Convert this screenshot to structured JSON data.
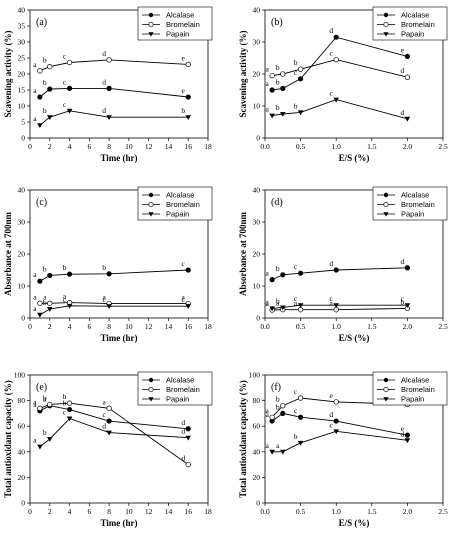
{
  "legend_names": [
    "Alcalase",
    "Bromelain",
    "Papain"
  ],
  "chart_data": [
    {
      "id": "a",
      "panel_label": "(a)",
      "type": "line",
      "xlabel": "Time (hr)",
      "ylabel": "Scavening activity (%)",
      "xlim": [
        0,
        18
      ],
      "ylim": [
        0,
        40
      ],
      "xticks": [
        0,
        2,
        4,
        6,
        8,
        10,
        12,
        14,
        16,
        18
      ],
      "yticks": [
        0,
        5,
        10,
        15,
        20,
        25,
        30,
        35,
        40
      ],
      "legend": "top-right",
      "series": [
        {
          "name": "Alcalase",
          "marker": "circle-filled",
          "x": [
            1,
            2,
            4,
            8,
            16
          ],
          "y": [
            12.8,
            15.3,
            15.5,
            15.5,
            12.8
          ],
          "labels": [
            "a",
            "b",
            "c",
            "d",
            "e"
          ]
        },
        {
          "name": "Bromelain",
          "marker": "circle-open",
          "x": [
            1,
            2,
            4,
            8,
            16
          ],
          "y": [
            21,
            22.3,
            23.6,
            24.4,
            23
          ],
          "labels": [
            "a",
            "b",
            "c",
            "d",
            "e"
          ]
        },
        {
          "name": "Papain",
          "marker": "triangle-down",
          "x": [
            1,
            2,
            4,
            8,
            16
          ],
          "y": [
            4,
            6.5,
            8.5,
            6.5,
            6.5
          ],
          "labels": [
            "a",
            "b",
            "c",
            "d",
            "b"
          ]
        }
      ]
    },
    {
      "id": "b",
      "panel_label": "(b)",
      "type": "line",
      "xlabel": "E/S (%)",
      "ylabel": "Scavening activity (%)",
      "xlim": [
        0,
        2.5
      ],
      "ylim": [
        0,
        40
      ],
      "xticks": [
        0.0,
        0.5,
        1.0,
        1.5,
        2.0,
        2.5
      ],
      "yticks": [
        0,
        10,
        20,
        30,
        40
      ],
      "legend": "top-right",
      "series": [
        {
          "name": "Alcalase",
          "marker": "circle-filled",
          "x": [
            0.1,
            0.25,
            0.5,
            1.0,
            2.0
          ],
          "y": [
            15,
            15.5,
            18.5,
            31.5,
            25.5
          ],
          "labels": [
            "a",
            "b",
            "c",
            "d",
            "e"
          ]
        },
        {
          "name": "Bromelain",
          "marker": "circle-open",
          "x": [
            0.1,
            0.25,
            0.5,
            1.0,
            2.0
          ],
          "y": [
            19.5,
            20,
            21.5,
            24.5,
            19
          ],
          "labels": [
            "a",
            "b",
            "b",
            "c",
            "d"
          ]
        },
        {
          "name": "Papain",
          "marker": "triangle-down",
          "x": [
            0.1,
            0.25,
            0.5,
            1.0,
            2.0
          ],
          "y": [
            7,
            7.5,
            8,
            12,
            6
          ],
          "labels": [
            "a",
            "b",
            "b",
            "c",
            "d"
          ]
        }
      ]
    },
    {
      "id": "c",
      "panel_label": "(c)",
      "type": "line",
      "xlabel": "Time (hr)",
      "ylabel": "Absorbance at 700nm",
      "xlim": [
        0,
        18
      ],
      "ylim": [
        0,
        40
      ],
      "xticks": [
        0,
        2,
        4,
        6,
        8,
        10,
        12,
        14,
        16,
        18
      ],
      "yticks": [
        0,
        10,
        20,
        30,
        40
      ],
      "legend": "top-right",
      "series": [
        {
          "name": "Alcalase",
          "marker": "circle-filled",
          "x": [
            1,
            2,
            4,
            8,
            16
          ],
          "y": [
            11.5,
            13.3,
            13.7,
            13.8,
            15
          ],
          "labels": [
            "a",
            "b",
            "b",
            "b",
            "c"
          ]
        },
        {
          "name": "Bromelain",
          "marker": "circle-open",
          "x": [
            1,
            2,
            4,
            8,
            16
          ],
          "y": [
            4.6,
            4.6,
            4.8,
            4.5,
            4.5
          ],
          "labels": [
            "a",
            "a",
            "a",
            "a",
            "a"
          ]
        },
        {
          "name": "Papain",
          "marker": "triangle-down",
          "x": [
            1,
            2,
            4,
            8,
            16
          ],
          "y": [
            1,
            2.8,
            3.8,
            3.7,
            3.7
          ],
          "labels": [
            "a",
            "b",
            "c",
            "c",
            "c"
          ]
        }
      ]
    },
    {
      "id": "d",
      "panel_label": "(d)",
      "type": "line",
      "xlabel": "E/S (%)",
      "ylabel": "Absorbance at 700nm",
      "xlim": [
        0,
        2.5
      ],
      "ylim": [
        0,
        40
      ],
      "xticks": [
        0.0,
        0.5,
        1.0,
        1.5,
        2.0,
        2.5
      ],
      "yticks": [
        0,
        10,
        20,
        30,
        40
      ],
      "legend": "top-right",
      "series": [
        {
          "name": "Alcalase",
          "marker": "circle-filled",
          "x": [
            0.1,
            0.25,
            0.5,
            1.0,
            2.0
          ],
          "y": [
            12,
            13.5,
            14,
            15,
            15.7
          ],
          "labels": [
            "a",
            "b",
            "c",
            "d",
            "d"
          ]
        },
        {
          "name": "Bromelain",
          "marker": "circle-open",
          "x": [
            0.1,
            0.25,
            0.5,
            1.0,
            2.0
          ],
          "y": [
            2.5,
            2.6,
            2.6,
            2.6,
            3
          ],
          "labels": [
            "a",
            "a",
            "a",
            "a",
            "b"
          ]
        },
        {
          "name": "Papain",
          "marker": "triangle-down",
          "x": [
            0.1,
            0.25,
            0.5,
            1.0,
            2.0
          ],
          "y": [
            3,
            3.3,
            4,
            4,
            4
          ],
          "labels": [
            "a",
            "b",
            "c",
            "c",
            "c"
          ]
        }
      ]
    },
    {
      "id": "e",
      "panel_label": "(e)",
      "type": "line",
      "xlabel": "Time (hr)",
      "ylabel": "Total antioxidant capacity (%)",
      "xlim": [
        0,
        18
      ],
      "ylim": [
        0,
        100
      ],
      "xticks": [
        0,
        2,
        4,
        6,
        8,
        10,
        12,
        14,
        16,
        18
      ],
      "yticks": [
        0,
        20,
        40,
        60,
        80,
        100
      ],
      "legend": "top-right",
      "series": [
        {
          "name": "Alcalase",
          "marker": "circle-filled",
          "x": [
            1,
            2,
            4,
            8,
            16
          ],
          "y": [
            72,
            76,
            73,
            64,
            58
          ],
          "labels": [
            "a",
            "a",
            "b",
            "c",
            "d"
          ]
        },
        {
          "name": "Bromelain",
          "marker": "circle-open",
          "x": [
            1,
            2,
            4,
            8,
            16
          ],
          "y": [
            74,
            77,
            78,
            74,
            30
          ],
          "labels": [
            "a",
            "b",
            "b",
            "a",
            "d"
          ]
        },
        {
          "name": "Papain",
          "marker": "triangle-down",
          "x": [
            1,
            2,
            4,
            8,
            16
          ],
          "y": [
            44,
            50,
            66,
            55,
            51
          ],
          "labels": [
            "a",
            "b",
            "c",
            "d",
            "d"
          ]
        }
      ]
    },
    {
      "id": "f",
      "panel_label": "(f)",
      "type": "line",
      "xlabel": "E/S (%)",
      "ylabel": "Total antioxidant capacity (%)",
      "xlim": [
        0,
        2.5
      ],
      "ylim": [
        0,
        100
      ],
      "xticks": [
        0.0,
        0.5,
        1.0,
        1.5,
        2.0,
        2.5
      ],
      "yticks": [
        0,
        20,
        40,
        60,
        80,
        100
      ],
      "legend": "top-right",
      "series": [
        {
          "name": "Alcalase",
          "marker": "circle-filled",
          "x": [
            0.1,
            0.25,
            0.5,
            1.0,
            2.0
          ],
          "y": [
            64,
            70,
            67,
            64,
            53
          ],
          "labels": [
            "a",
            "b",
            "c",
            "d",
            "e"
          ]
        },
        {
          "name": "Bromelain",
          "marker": "circle-open",
          "x": [
            0.1,
            0.25,
            0.5,
            1.0,
            2.0
          ],
          "y": [
            67,
            76,
            82,
            79,
            77
          ],
          "labels": [
            "a",
            "b",
            "c",
            "e",
            "e"
          ]
        },
        {
          "name": "Papain",
          "marker": "triangle-down",
          "x": [
            0.1,
            0.25,
            0.5,
            1.0,
            2.0
          ],
          "y": [
            40,
            40,
            47,
            56,
            49
          ],
          "labels": [
            "a",
            "a",
            "b",
            "c",
            "d"
          ]
        }
      ]
    }
  ]
}
